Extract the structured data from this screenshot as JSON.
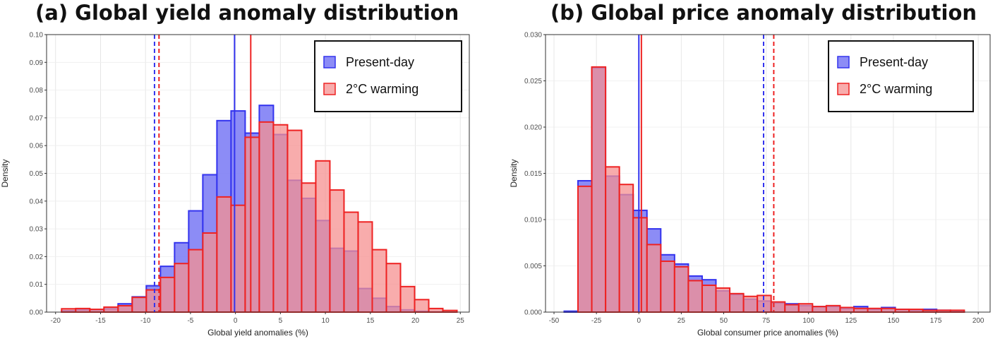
{
  "chart_data": [
    {
      "type": "histogram",
      "title": "(a) Global yield anomaly distribution",
      "xlabel": "Global yield anomalies (%)",
      "ylabel": "Density",
      "xlim": [
        -21,
        26
      ],
      "ylim": [
        0,
        0.1
      ],
      "xticks": [
        -20,
        -15,
        -10,
        -5,
        0,
        5,
        10,
        15,
        20,
        25
      ],
      "yticks": [
        0.0,
        0.01,
        0.02,
        0.03,
        0.04,
        0.05,
        0.06,
        0.07,
        0.08,
        0.09,
        0.1
      ],
      "ytick_labels": [
        "0.00",
        "0.01",
        "0.02",
        "0.03",
        "0.04",
        "0.05",
        "0.06",
        "0.07",
        "0.08",
        "0.09",
        "0.10"
      ],
      "bin_start": -19.33,
      "bin_width": 1.57,
      "legend": {
        "position": "top-right",
        "entries": [
          "Present-day",
          "2°C warming"
        ]
      },
      "series": [
        {
          "name": "Present-day",
          "color": "#3333ee",
          "fill": "#8080f5",
          "values": [
            0.0005,
            0.0008,
            0.0009,
            0.0012,
            0.003,
            0.0055,
            0.0095,
            0.0165,
            0.025,
            0.0365,
            0.0495,
            0.069,
            0.0725,
            0.0645,
            0.0745,
            0.064,
            0.0475,
            0.041,
            0.033,
            0.023,
            0.022,
            0.0085,
            0.005,
            0.002,
            0.0008,
            0.0003,
            0.0001,
            0
          ]
        },
        {
          "name": "2°C warming",
          "color": "#ee2222",
          "fill": "#f59090",
          "values": [
            0.0012,
            0.0013,
            0.001,
            0.0018,
            0.0023,
            0.0053,
            0.008,
            0.0125,
            0.0175,
            0.0225,
            0.0285,
            0.0415,
            0.0385,
            0.063,
            0.0685,
            0.0675,
            0.0655,
            0.0465,
            0.0545,
            0.044,
            0.036,
            0.0325,
            0.0225,
            0.0175,
            0.0092,
            0.0045,
            0.0013,
            0.0006
          ]
        }
      ],
      "vlines": [
        {
          "series": "Present-day",
          "x": -9.0,
          "style": "dashed"
        },
        {
          "series": "2°C warming",
          "x": -8.5,
          "style": "dashed"
        },
        {
          "series": "Present-day",
          "x": -0.1,
          "style": "solid"
        },
        {
          "series": "2°C warming",
          "x": 1.7,
          "style": "solid"
        }
      ]
    },
    {
      "type": "histogram",
      "title": "(b) Global price anomaly distribution",
      "xlabel": "Global consumer price anomalies (%)",
      "ylabel": "Density",
      "xlim": [
        -55,
        207
      ],
      "ylim": [
        0,
        0.03
      ],
      "xticks": [
        -50,
        -25,
        0,
        25,
        50,
        75,
        100,
        125,
        150,
        175,
        200
      ],
      "yticks": [
        0.0,
        0.005,
        0.01,
        0.015,
        0.02,
        0.025,
        0.03
      ],
      "ytick_labels": [
        "0.000",
        "0.005",
        "0.010",
        "0.015",
        "0.020",
        "0.025",
        "0.030"
      ],
      "bin_start": -44.0,
      "bin_width": 8.13,
      "legend": {
        "position": "top-right",
        "entries": [
          "Present-day",
          "2°C warming"
        ]
      },
      "series": [
        {
          "name": "Present-day",
          "color": "#3333ee",
          "fill": "#8080f5",
          "values": [
            0.0001,
            0.0142,
            0.0264,
            0.0147,
            0.0127,
            0.011,
            0.009,
            0.0062,
            0.0052,
            0.0039,
            0.0035,
            0.0023,
            0.0019,
            0.0014,
            0.0012,
            0.001,
            0.0009,
            0.0007,
            0.0006,
            0.0006,
            0.0004,
            0.0006,
            0.0003,
            0.0005,
            0.0003,
            0.0002,
            0.0003,
            0.0002,
            0.0001
          ]
        },
        {
          "name": "2°C warming",
          "color": "#ee2222",
          "fill": "#f59090",
          "values": [
            0,
            0.0136,
            0.0265,
            0.0157,
            0.0138,
            0.0102,
            0.0073,
            0.0055,
            0.0049,
            0.0034,
            0.0029,
            0.0026,
            0.002,
            0.0017,
            0.0018,
            0.0011,
            0.0008,
            0.0009,
            0.0006,
            0.0007,
            0.0005,
            0.0004,
            0.0004,
            0.0004,
            0.0003,
            0.0003,
            0.0002,
            0.0002,
            0.0002
          ]
        }
      ],
      "vlines": [
        {
          "series": "Present-day",
          "x": 73.5,
          "style": "dashed"
        },
        {
          "series": "2°C warming",
          "x": 79.5,
          "style": "dashed"
        },
        {
          "series": "Present-day",
          "x": 0.0,
          "style": "solid"
        },
        {
          "series": "2°C warming",
          "x": 1.5,
          "style": "solid"
        }
      ]
    }
  ]
}
